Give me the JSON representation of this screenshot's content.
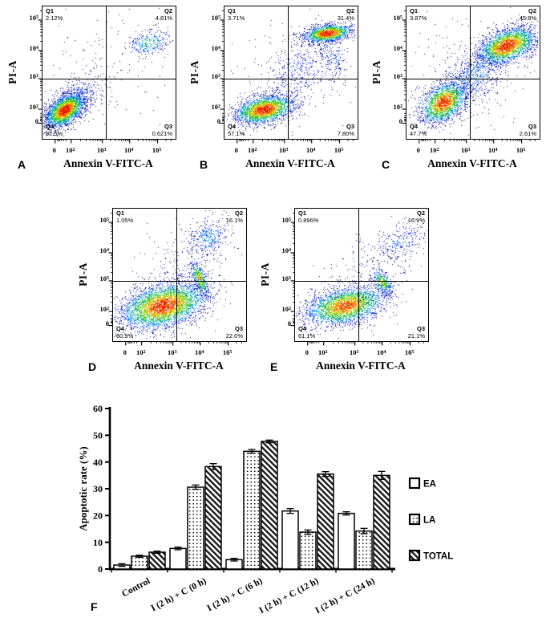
{
  "figure": {
    "flow_axis": {
      "xticks": [
        {
          "b": "0",
          "e": "",
          "f": 0.095
        },
        {
          "b": "10",
          "e": "2",
          "f": 0.215
        },
        {
          "b": "10",
          "e": "3",
          "f": 0.45
        },
        {
          "b": "10",
          "e": "4",
          "f": 0.655
        },
        {
          "b": "10",
          "e": "5",
          "f": 0.865
        }
      ],
      "yticks": [
        {
          "b": "10",
          "e": "5",
          "f": 0.897
        },
        {
          "b": "10",
          "e": "4",
          "f": 0.667
        },
        {
          "b": "10",
          "e": "3",
          "f": 0.455
        },
        {
          "b": "10",
          "e": "2",
          "f": 0.224
        },
        {
          "b": "0",
          "e": "",
          "f": 0.118
        }
      ],
      "vline_frac": 0.475,
      "hline_frac_from_top": 0.545
    },
    "colors": {
      "frame": "#000000",
      "density_colormap": [
        "#0a0a78",
        "#1428dc",
        "#0096e6",
        "#28be78",
        "#3cc828",
        "#dcdc00",
        "#ff8c00",
        "#e61e00"
      ]
    }
  },
  "chart_data": [
    {
      "type": "scatter",
      "panel": "A",
      "xlabel": "Annexin V-FITC-A",
      "ylabel": "PI-A",
      "quadrants": {
        "q1": {
          "label": "Q1",
          "value": "2.12%"
        },
        "q2": {
          "label": "Q2",
          "value": "4.81%"
        },
        "q3": {
          "label": "Q3",
          "value": "0.621%"
        },
        "q4": {
          "label": "Q4",
          "value": "92.5%"
        }
      },
      "clusters": [
        [
          0.17,
          0.21,
          0.085,
          0.048,
          38,
          2600,
          1.0
        ],
        [
          0.3,
          0.33,
          0.11,
          0.08,
          40,
          260,
          0.18
        ],
        [
          0.8,
          0.72,
          0.075,
          0.045,
          18,
          300,
          0.45
        ],
        [
          0.5,
          0.55,
          0.3,
          0.22,
          38,
          130,
          0.06
        ]
      ]
    },
    {
      "type": "scatter",
      "panel": "B",
      "xlabel": "Annexin V-FITC-A",
      "ylabel": "PI-A",
      "quadrants": {
        "q1": {
          "label": "Q1",
          "value": "3.71%"
        },
        "q2": {
          "label": "Q2",
          "value": "31.4%"
        },
        "q3": {
          "label": "Q3",
          "value": "7.80%"
        },
        "q4": {
          "label": "Q4",
          "value": "57.1%"
        }
      },
      "clusters": [
        [
          0.3,
          0.215,
          0.115,
          0.05,
          12,
          2300,
          1.0
        ],
        [
          0.78,
          0.795,
          0.09,
          0.032,
          8,
          1500,
          1.0
        ],
        [
          0.55,
          0.5,
          0.16,
          0.1,
          48,
          420,
          0.15
        ],
        [
          0.82,
          0.6,
          0.045,
          0.09,
          15,
          200,
          0.22
        ],
        [
          0.5,
          0.5,
          0.3,
          0.24,
          40,
          150,
          0.06
        ]
      ]
    },
    {
      "type": "scatter",
      "panel": "C",
      "xlabel": "Annexin V-FITC-A",
      "ylabel": "PI-A",
      "quadrants": {
        "q1": {
          "label": "Q1",
          "value": "3.87%"
        },
        "q2": {
          "label": "Q2",
          "value": "45.8%"
        },
        "q3": {
          "label": "Q3",
          "value": "2.61%"
        },
        "q4": {
          "label": "Q4",
          "value": "47.7%"
        }
      },
      "clusters": [
        [
          0.28,
          0.27,
          0.1,
          0.065,
          38,
          1900,
          0.95
        ],
        [
          0.76,
          0.7,
          0.115,
          0.06,
          22,
          2400,
          1.0
        ],
        [
          0.52,
          0.48,
          0.17,
          0.09,
          42,
          750,
          0.25
        ],
        [
          0.5,
          0.55,
          0.3,
          0.24,
          40,
          200,
          0.06
        ]
      ]
    },
    {
      "type": "scatter",
      "panel": "D",
      "xlabel": "Annexin V-FITC-A",
      "ylabel": "PI-A",
      "quadrants": {
        "q1": {
          "label": "Q1",
          "value": "1.05%"
        },
        "q2": {
          "label": "Q2",
          "value": "16.1%"
        },
        "q3": {
          "label": "Q3",
          "value": "22.0%"
        },
        "q4": {
          "label": "Q4",
          "value": "60.9%"
        }
      },
      "clusters": [
        [
          0.38,
          0.26,
          0.165,
          0.08,
          14,
          3600,
          1.0
        ],
        [
          0.655,
          0.47,
          0.022,
          0.07,
          20,
          420,
          0.75
        ],
        [
          0.72,
          0.78,
          0.09,
          0.065,
          30,
          330,
          0.28
        ],
        [
          0.55,
          0.55,
          0.19,
          0.15,
          45,
          260,
          0.08
        ]
      ]
    },
    {
      "type": "scatter",
      "panel": "E",
      "xlabel": "Annexin V-FITC-A",
      "ylabel": "PI-A",
      "quadrants": {
        "q1": {
          "label": "Q1",
          "value": "0.896%"
        },
        "q2": {
          "label": "Q2",
          "value": "16.9%"
        },
        "q3": {
          "label": "Q3",
          "value": "21.1%"
        },
        "q4": {
          "label": "Q4",
          "value": "61.1%"
        }
      },
      "clusters": [
        [
          0.38,
          0.26,
          0.155,
          0.068,
          13,
          2700,
          0.9
        ],
        [
          0.66,
          0.44,
          0.028,
          0.055,
          28,
          330,
          0.65
        ],
        [
          0.8,
          0.76,
          0.1,
          0.07,
          35,
          260,
          0.2
        ],
        [
          0.55,
          0.5,
          0.21,
          0.14,
          42,
          220,
          0.07
        ]
      ]
    },
    {
      "type": "bar",
      "panel": "F",
      "ylabel": "Apoptotic rate (%)",
      "ylim": [
        0,
        60
      ],
      "ytick_step": 10,
      "grid": false,
      "legend_position": "right",
      "categories": [
        "Control",
        "I (2 h) + C (0 h)",
        "I (2 h) + C (6 h)",
        "I (2 h) + C (12 h)",
        "I (2 h) + C (24 h)"
      ],
      "series": [
        {
          "name": "EA",
          "fill": "plain",
          "values": [
            1.5,
            7.7,
            3.5,
            21.7,
            20.8
          ],
          "errors": [
            0.5,
            0.5,
            0.5,
            0.9,
            0.6
          ]
        },
        {
          "name": "LA",
          "fill": "dots",
          "values": [
            4.8,
            30.6,
            44.0,
            13.8,
            14.2
          ],
          "errors": [
            0.4,
            0.8,
            0.7,
            0.8,
            1.0
          ]
        },
        {
          "name": "TOTAL",
          "fill": "hatch",
          "values": [
            6.3,
            38.3,
            47.7,
            35.5,
            35.0
          ],
          "errors": [
            0.4,
            1.1,
            0.5,
            0.9,
            1.5
          ]
        }
      ]
    }
  ]
}
